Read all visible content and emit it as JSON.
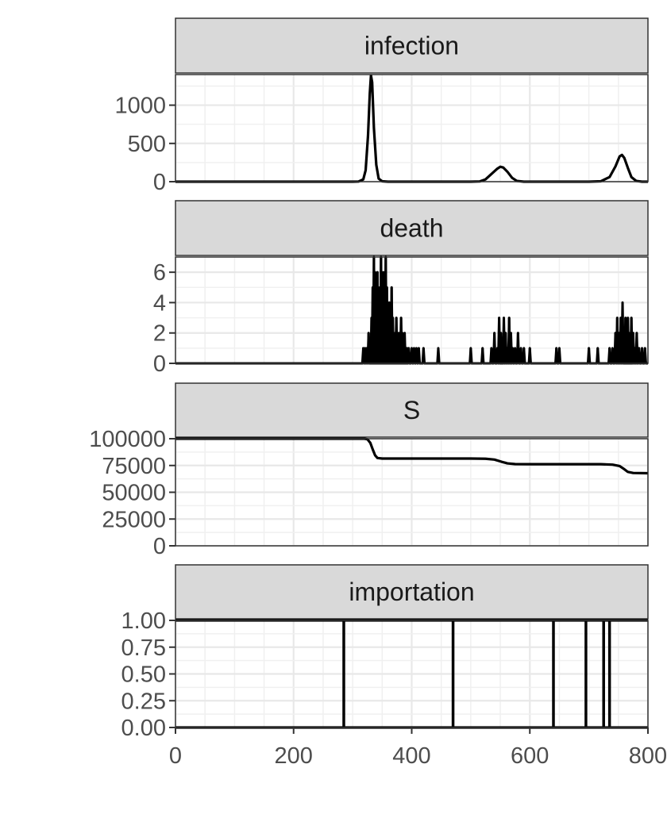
{
  "chart_data": {
    "type": "line",
    "layout": "faceted-vertical",
    "shared_x": {
      "xlim": [
        0,
        800
      ],
      "ticks": [
        0,
        200,
        400,
        600,
        800
      ],
      "tick_labels": [
        "0",
        "200",
        "400",
        "600",
        "800"
      ]
    },
    "grid": true,
    "theme": "bw",
    "line_color": "#000000",
    "panels": [
      {
        "name": "infection",
        "ylim": [
          0,
          1400
        ],
        "ticks": [
          0,
          500,
          1000
        ],
        "tick_labels": [
          "0",
          "500",
          "1000"
        ],
        "kind": "line",
        "points": [
          [
            0,
            0
          ],
          [
            300,
            0
          ],
          [
            310,
            2
          ],
          [
            318,
            30
          ],
          [
            322,
            150
          ],
          [
            326,
            600
          ],
          [
            329,
            1150
          ],
          [
            331,
            1390
          ],
          [
            333,
            1300
          ],
          [
            336,
            700
          ],
          [
            340,
            220
          ],
          [
            344,
            40
          ],
          [
            350,
            5
          ],
          [
            360,
            0
          ],
          [
            500,
            0
          ],
          [
            515,
            3
          ],
          [
            525,
            30
          ],
          [
            535,
            100
          ],
          [
            545,
            170
          ],
          [
            550,
            195
          ],
          [
            555,
            185
          ],
          [
            562,
            130
          ],
          [
            570,
            50
          ],
          [
            578,
            10
          ],
          [
            590,
            0
          ],
          [
            700,
            0
          ],
          [
            720,
            5
          ],
          [
            735,
            60
          ],
          [
            745,
            200
          ],
          [
            752,
            330
          ],
          [
            756,
            350
          ],
          [
            760,
            310
          ],
          [
            766,
            180
          ],
          [
            772,
            60
          ],
          [
            780,
            10
          ],
          [
            790,
            0
          ],
          [
            800,
            0
          ]
        ]
      },
      {
        "name": "death",
        "ylim": [
          0,
          7
        ],
        "ticks": [
          0,
          2,
          4,
          6
        ],
        "tick_labels": [
          "0",
          "2",
          "4",
          "6"
        ],
        "kind": "spikes",
        "points": [
          [
            318,
            1
          ],
          [
            321,
            1
          ],
          [
            324,
            1
          ],
          [
            327,
            2
          ],
          [
            330,
            1
          ],
          [
            332,
            3
          ],
          [
            334,
            5
          ],
          [
            336,
            7
          ],
          [
            338,
            6
          ],
          [
            340,
            4
          ],
          [
            342,
            6
          ],
          [
            344,
            2
          ],
          [
            346,
            5
          ],
          [
            348,
            7
          ],
          [
            350,
            3
          ],
          [
            352,
            6
          ],
          [
            354,
            4
          ],
          [
            356,
            7
          ],
          [
            358,
            5
          ],
          [
            360,
            3
          ],
          [
            362,
            4
          ],
          [
            364,
            2
          ],
          [
            366,
            5
          ],
          [
            368,
            3
          ],
          [
            370,
            1
          ],
          [
            372,
            2
          ],
          [
            374,
            3
          ],
          [
            376,
            1
          ],
          [
            378,
            2
          ],
          [
            380,
            1
          ],
          [
            382,
            3
          ],
          [
            384,
            2
          ],
          [
            386,
            1
          ],
          [
            388,
            2
          ],
          [
            390,
            1
          ],
          [
            392,
            1
          ],
          [
            395,
            1
          ],
          [
            400,
            1
          ],
          [
            404,
            1
          ],
          [
            408,
            1
          ],
          [
            412,
            1
          ],
          [
            420,
            1
          ],
          [
            445,
            1
          ],
          [
            500,
            1
          ],
          [
            520,
            1
          ],
          [
            535,
            1
          ],
          [
            540,
            2
          ],
          [
            545,
            1
          ],
          [
            548,
            3
          ],
          [
            551,
            2
          ],
          [
            553,
            1
          ],
          [
            556,
            3
          ],
          [
            559,
            2
          ],
          [
            562,
            1
          ],
          [
            565,
            3
          ],
          [
            568,
            2
          ],
          [
            571,
            1
          ],
          [
            575,
            1
          ],
          [
            580,
            2
          ],
          [
            585,
            1
          ],
          [
            590,
            1
          ],
          [
            600,
            1
          ],
          [
            645,
            1
          ],
          [
            650,
            1
          ],
          [
            700,
            1
          ],
          [
            715,
            1
          ],
          [
            735,
            1
          ],
          [
            740,
            1
          ],
          [
            745,
            2
          ],
          [
            748,
            3
          ],
          [
            751,
            2
          ],
          [
            754,
            3
          ],
          [
            757,
            4
          ],
          [
            760,
            2
          ],
          [
            762,
            3
          ],
          [
            764,
            2
          ],
          [
            766,
            3
          ],
          [
            768,
            2
          ],
          [
            770,
            1
          ],
          [
            772,
            3
          ],
          [
            775,
            2
          ],
          [
            778,
            1
          ],
          [
            781,
            2
          ],
          [
            785,
            1
          ],
          [
            790,
            1
          ],
          [
            795,
            1
          ]
        ]
      },
      {
        "name": "S",
        "ylim": [
          0,
          100000
        ],
        "ticks": [
          0,
          25000,
          50000,
          75000,
          100000
        ],
        "tick_labels": [
          "0",
          "25000",
          "50000",
          "75000",
          "100000"
        ],
        "kind": "line",
        "points": [
          [
            0,
            100000
          ],
          [
            320,
            100000
          ],
          [
            325,
            99500
          ],
          [
            330,
            96000
          ],
          [
            334,
            90000
          ],
          [
            338,
            84500
          ],
          [
            342,
            82000
          ],
          [
            350,
            81500
          ],
          [
            500,
            81500
          ],
          [
            525,
            81300
          ],
          [
            540,
            80500
          ],
          [
            552,
            78500
          ],
          [
            562,
            77000
          ],
          [
            575,
            76300
          ],
          [
            600,
            76200
          ],
          [
            720,
            76200
          ],
          [
            740,
            75800
          ],
          [
            752,
            74500
          ],
          [
            760,
            71500
          ],
          [
            766,
            69000
          ],
          [
            775,
            68000
          ],
          [
            800,
            67800
          ]
        ]
      },
      {
        "name": "importation",
        "ylim": [
          0,
          1
        ],
        "ticks": [
          0,
          0.25,
          0.5,
          0.75,
          1
        ],
        "tick_labels": [
          "0.00",
          "0.25",
          "0.50",
          "0.75",
          "1.00"
        ],
        "kind": "impulses",
        "events": [
          285,
          470,
          640,
          695,
          725,
          735
        ]
      }
    ]
  }
}
